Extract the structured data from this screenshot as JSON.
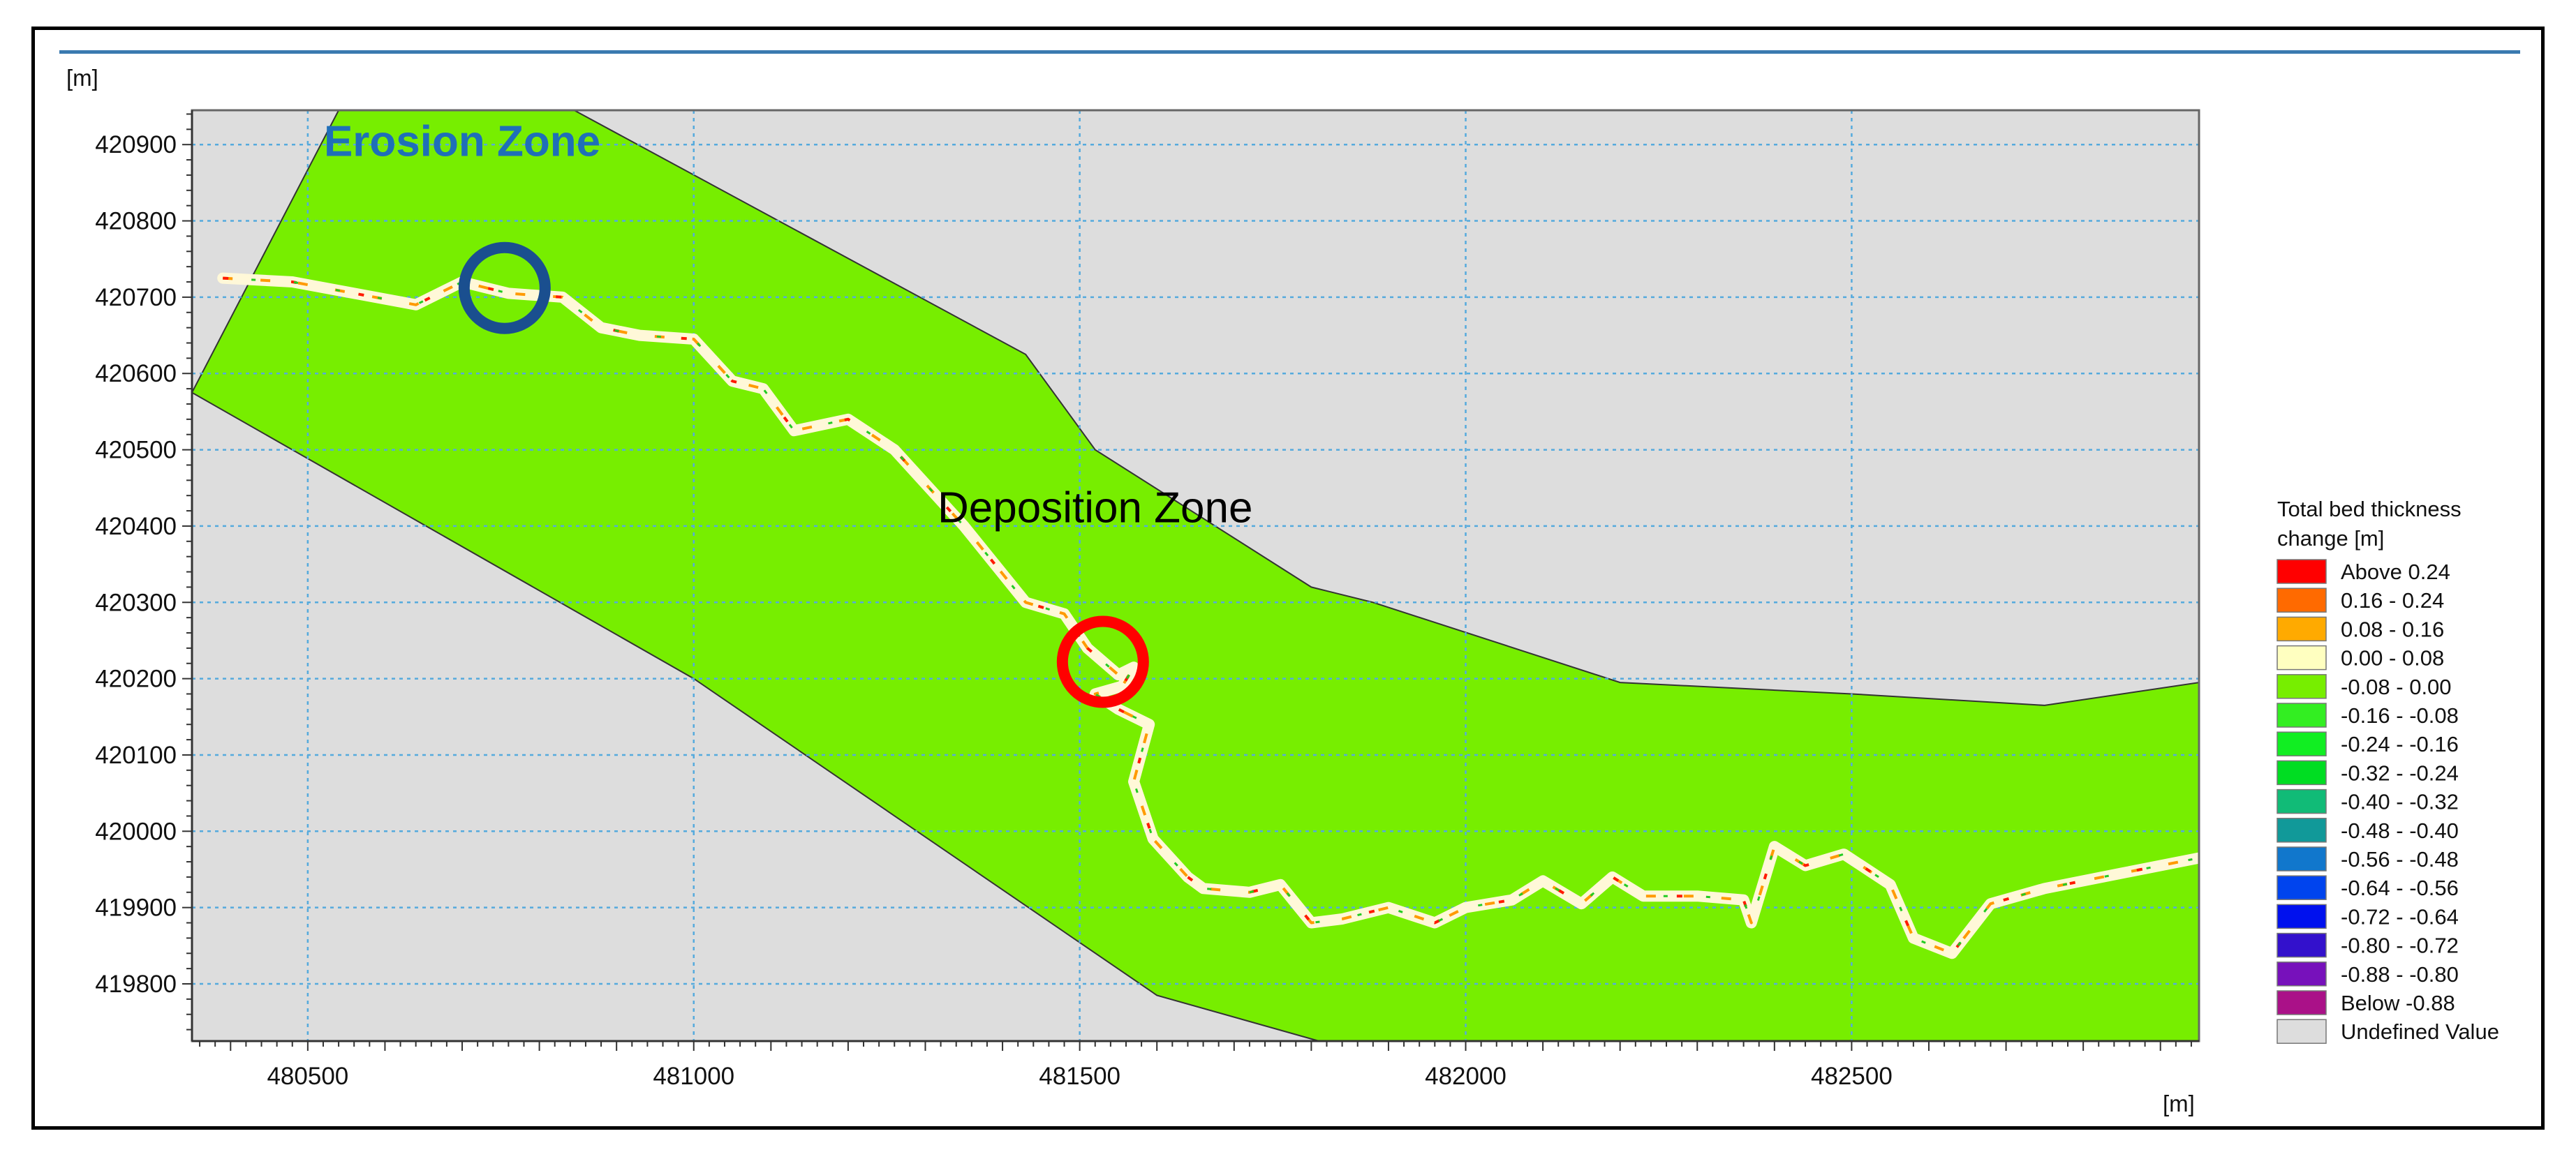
{
  "chart_data": {
    "type": "map",
    "y_unit": "[m]",
    "x_unit": "[m]",
    "xlim": [
      480350,
      482950
    ],
    "ylim": [
      419725,
      420945
    ],
    "x_ticks": [
      "480500",
      "481000",
      "481500",
      "482000",
      "482500"
    ],
    "y_ticks": [
      "420900",
      "420800",
      "420700",
      "420600",
      "420500",
      "420400",
      "420300",
      "420200",
      "420100",
      "420000",
      "419900",
      "419800"
    ],
    "grid": true,
    "annotations": [
      {
        "text": "Erosion Zone",
        "color": "#1f6fb8",
        "x": 480700,
        "y": 420885
      },
      {
        "text": "Deposition Zone",
        "color": "#000000",
        "x": 481520,
        "y": 420405
      }
    ],
    "markers": [
      {
        "name": "erosion-circle",
        "color": "#1a4f8f",
        "x": 480755,
        "y": 420712
      },
      {
        "name": "deposition-circle",
        "color": "#ff0000",
        "x": 481530,
        "y": 420222
      }
    ],
    "domain_polygon": [
      [
        480540,
        420945
      ],
      [
        480845,
        420945
      ],
      [
        481430,
        420625
      ],
      [
        481520,
        420500
      ],
      [
        481800,
        420320
      ],
      [
        481880,
        420300
      ],
      [
        482200,
        420195
      ],
      [
        482500,
        420180
      ],
      [
        482750,
        420165
      ],
      [
        482950,
        420195
      ],
      [
        482950,
        419725
      ],
      [
        481810,
        419725
      ],
      [
        481600,
        419785
      ],
      [
        481000,
        420200
      ],
      [
        480350,
        420575
      ]
    ],
    "channel": [
      [
        480390,
        420725
      ],
      [
        480480,
        420720
      ],
      [
        480560,
        420705
      ],
      [
        480640,
        420690
      ],
      [
        480700,
        420720
      ],
      [
        480760,
        420705
      ],
      [
        480830,
        420700
      ],
      [
        480880,
        420660
      ],
      [
        480930,
        420650
      ],
      [
        481000,
        420645
      ],
      [
        481050,
        420590
      ],
      [
        481090,
        420580
      ],
      [
        481130,
        420525
      ],
      [
        481200,
        420540
      ],
      [
        481260,
        420500
      ],
      [
        481350,
        420400
      ],
      [
        481430,
        420300
      ],
      [
        481480,
        420285
      ],
      [
        481510,
        420240
      ],
      [
        481550,
        420205
      ],
      [
        481570,
        420215
      ],
      [
        481555,
        420190
      ],
      [
        481520,
        420180
      ],
      [
        481550,
        420160
      ],
      [
        481590,
        420140
      ],
      [
        481570,
        420065
      ],
      [
        481595,
        419990
      ],
      [
        481640,
        419940
      ],
      [
        481660,
        419925
      ],
      [
        481720,
        419920
      ],
      [
        481760,
        419930
      ],
      [
        481800,
        419880
      ],
      [
        481840,
        419885
      ],
      [
        481900,
        419900
      ],
      [
        481960,
        419880
      ],
      [
        482000,
        419900
      ],
      [
        482060,
        419910
      ],
      [
        482100,
        419935
      ],
      [
        482150,
        419905
      ],
      [
        482190,
        419940
      ],
      [
        482230,
        419915
      ],
      [
        482300,
        419915
      ],
      [
        482360,
        419910
      ],
      [
        482370,
        419880
      ],
      [
        482400,
        419980
      ],
      [
        482440,
        419955
      ],
      [
        482490,
        419970
      ],
      [
        482550,
        419930
      ],
      [
        482580,
        419860
      ],
      [
        482630,
        419840
      ],
      [
        482680,
        419905
      ],
      [
        482750,
        419925
      ],
      [
        482850,
        419945
      ],
      [
        482950,
        419965
      ]
    ],
    "legend": {
      "title": [
        "Total bed thickness",
        "change [m]"
      ],
      "position": "right",
      "items": [
        {
          "label": "Above  0.24",
          "color": "#ff0000"
        },
        {
          "label": " 0.16 -  0.24",
          "color": "#ff6a00"
        },
        {
          "label": " 0.08 -  0.16",
          "color": "#ffaa00"
        },
        {
          "label": " 0.00 -  0.08",
          "color": "#ffffc0"
        },
        {
          "label": "-0.08 -  0.00",
          "color": "#77ee00"
        },
        {
          "label": "-0.16 - -0.08",
          "color": "#33ee22"
        },
        {
          "label": "-0.24 - -0.16",
          "color": "#11ee22"
        },
        {
          "label": "-0.32 - -0.24",
          "color": "#00dd22"
        },
        {
          "label": "-0.40 - -0.32",
          "color": "#11bb77"
        },
        {
          "label": "-0.48 - -0.40",
          "color": "#119999"
        },
        {
          "label": "-0.56 - -0.48",
          "color": "#1177cc"
        },
        {
          "label": "-0.64 - -0.56",
          "color": "#0044ee"
        },
        {
          "label": "-0.72 - -0.64",
          "color": "#0011ee"
        },
        {
          "label": "-0.80 - -0.72",
          "color": "#3311cc"
        },
        {
          "label": "-0.88 - -0.80",
          "color": "#7711bb"
        },
        {
          "label": "Below -0.88",
          "color": "#aa1188"
        },
        {
          "label": "Undefined Value",
          "color": "#dddddd"
        }
      ]
    },
    "colors": {
      "background": "#dddddd",
      "domain": "#77ee00",
      "grid_green": "#22bb22",
      "grid_blue": "#55aadd"
    }
  }
}
